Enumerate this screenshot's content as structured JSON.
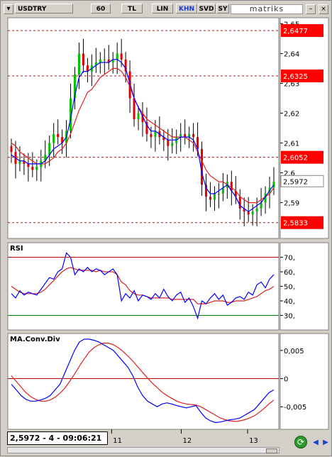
{
  "toolbar": {
    "symbol": "USDTRY",
    "buttons": [
      "60",
      "TL",
      "LIN",
      "KHN",
      "SVD",
      "SY"
    ],
    "active_button": "KHN",
    "logo": "matriks",
    "window_buttons": [
      "–",
      "□",
      "×"
    ]
  },
  "status": {
    "readout": "2,5972 - 4 - 09:06:21"
  },
  "colors": {
    "bull_candle": "#00c000",
    "bear_candle": "#e00000",
    "wick": "#000000",
    "ma_line": "#0000ff",
    "signal_line": "#e02020",
    "hline_level": "#e00000",
    "rsi_30_line": "#008000",
    "price_box": "#ff0000",
    "panel_bg": "#ffffff"
  },
  "chart_data": [
    {
      "type": "candlestick",
      "symbol": "USDTRY",
      "ylim": [
        2.578,
        2.652
      ],
      "yticks": [
        2.59,
        2.6,
        2.61,
        2.62,
        2.63,
        2.64,
        2.65
      ],
      "ytick_labels": [
        "2,59",
        "2,6",
        "2,61",
        "2,62",
        "2,63",
        "2,64",
        "2,65"
      ],
      "x_labels": [
        "11",
        "12",
        "13"
      ],
      "horizontal_levels": [
        {
          "value": 2.6477,
          "label": "2,6477"
        },
        {
          "value": 2.6325,
          "label": "2,6325"
        },
        {
          "value": 2.6052,
          "label": "2,6052"
        },
        {
          "value": 2.5833,
          "label": "2,5833"
        }
      ],
      "last_price": {
        "value": 2.5972,
        "label": "2,5972"
      },
      "series": [
        {
          "name": "close",
          "values": [
            2.607,
            2.603,
            2.604,
            2.603,
            2.602,
            2.601,
            2.602,
            2.604,
            2.606,
            2.61,
            2.613,
            2.612,
            2.61,
            2.614,
            2.625,
            2.633,
            2.64,
            2.636,
            2.634,
            2.636,
            2.637,
            2.638,
            2.638,
            2.637,
            2.638,
            2.64,
            2.638,
            2.634,
            2.625,
            2.618,
            2.62,
            2.617,
            2.613,
            2.612,
            2.614,
            2.612,
            2.611,
            2.609,
            2.61,
            2.612,
            2.613,
            2.612,
            2.613,
            2.612,
            2.608,
            2.596,
            2.592,
            2.591,
            2.593,
            2.593,
            2.595,
            2.597,
            2.594,
            2.592,
            2.588,
            2.587,
            2.586,
            2.587,
            2.588,
            2.59,
            2.593,
            2.595,
            2.597
          ]
        },
        {
          "name": "fast-average",
          "values": [
            2.606,
            2.605,
            2.604,
            2.604,
            2.603,
            2.603,
            2.603,
            2.603,
            2.604,
            2.606,
            2.608,
            2.609,
            2.61,
            2.612,
            2.618,
            2.626,
            2.632,
            2.634,
            2.634,
            2.635,
            2.636,
            2.637,
            2.637,
            2.637,
            2.638,
            2.638,
            2.637,
            2.635,
            2.63,
            2.625,
            2.622,
            2.619,
            2.616,
            2.614,
            2.614,
            2.613,
            2.612,
            2.611,
            2.611,
            2.611,
            2.612,
            2.612,
            2.612,
            2.611,
            2.608,
            2.6,
            2.595,
            2.593,
            2.593,
            2.594,
            2.595,
            2.596,
            2.594,
            2.592,
            2.589,
            2.588,
            2.587,
            2.588,
            2.589,
            2.59,
            2.592,
            2.594,
            2.596
          ]
        },
        {
          "name": "slow-average",
          "values": [
            2.61,
            2.609,
            2.607,
            2.606,
            2.605,
            2.604,
            2.603,
            2.603,
            2.603,
            2.604,
            2.605,
            2.607,
            2.608,
            2.61,
            2.613,
            2.617,
            2.621,
            2.624,
            2.627,
            2.628,
            2.63,
            2.632,
            2.633,
            2.634,
            2.635,
            2.635,
            2.634,
            2.632,
            2.629,
            2.625,
            2.622,
            2.62,
            2.618,
            2.617,
            2.616,
            2.615,
            2.614,
            2.613,
            2.612,
            2.612,
            2.612,
            2.612,
            2.611,
            2.61,
            2.607,
            2.604,
            2.601,
            2.599,
            2.598,
            2.597,
            2.597,
            2.596,
            2.595,
            2.594,
            2.592,
            2.591,
            2.59,
            2.59,
            2.59,
            2.591,
            2.592,
            2.593,
            2.595
          ]
        }
      ]
    },
    {
      "type": "line",
      "title": "RSI",
      "ylim": [
        20,
        80
      ],
      "yticks": [
        30,
        40,
        50,
        60,
        70
      ],
      "ytick_labels": [
        "30,",
        "40,",
        "50,",
        "60,",
        "70,"
      ],
      "reference_lines": [
        70,
        30
      ],
      "series": [
        {
          "name": "rsi",
          "values": [
            45,
            42,
            47,
            44,
            46,
            45,
            44,
            48,
            52,
            56,
            55,
            60,
            62,
            73,
            70,
            58,
            62,
            60,
            63,
            60,
            62,
            61,
            58,
            60,
            62,
            58,
            40,
            45,
            42,
            47,
            40,
            44,
            43,
            41,
            45,
            42,
            48,
            43,
            40,
            44,
            46,
            39,
            42,
            36,
            28,
            40,
            38,
            42,
            45,
            41,
            44,
            37,
            39,
            42,
            43,
            41,
            46,
            44,
            51,
            53,
            49,
            55,
            58
          ]
        },
        {
          "name": "signal",
          "values": [
            50,
            48,
            46,
            45,
            45,
            45,
            45,
            46,
            48,
            51,
            54,
            57,
            60,
            62,
            63,
            62,
            61,
            61,
            61,
            61,
            60,
            61,
            60,
            60,
            60,
            58,
            53,
            51,
            47,
            45,
            44,
            44,
            43,
            42,
            42,
            42,
            42,
            42,
            41,
            41,
            41,
            41,
            41,
            41,
            38,
            38,
            38,
            39,
            40,
            40,
            40,
            39,
            39,
            40,
            40,
            40,
            41,
            42,
            43,
            45,
            47,
            48,
            50
          ]
        }
      ]
    },
    {
      "type": "line",
      "title": "MA.Conv.Div",
      "ylim": [
        -0.009,
        0.008
      ],
      "yticks": [
        -0.005,
        0,
        0.005
      ],
      "ytick_labels": [
        "-0,005",
        "0",
        "0,005"
      ],
      "reference_lines": [
        0
      ],
      "series": [
        {
          "name": "macd",
          "values": [
            -0.001,
            -0.002,
            -0.003,
            -0.0037,
            -0.004,
            -0.004,
            -0.0038,
            -0.0035,
            -0.003,
            -0.002,
            -0.001,
            0.001,
            0.003,
            0.005,
            0.0065,
            0.007,
            0.007,
            0.0068,
            0.0065,
            0.006,
            0.0055,
            0.005,
            0.004,
            0.003,
            0.002,
            0.0005,
            -0.0015,
            -0.003,
            -0.004,
            -0.0045,
            -0.005,
            -0.0045,
            -0.0043,
            -0.0045,
            -0.0048,
            -0.005,
            -0.0052,
            -0.005,
            -0.0048,
            -0.006,
            -0.007,
            -0.0075,
            -0.0078,
            -0.0077,
            -0.0075,
            -0.0073,
            -0.0072,
            -0.007,
            -0.0065,
            -0.006,
            -0.0055,
            -0.0045,
            -0.0035,
            -0.0025,
            -0.002
          ]
        },
        {
          "name": "signal",
          "values": [
            0.0005,
            -0.0005,
            -0.0015,
            -0.0025,
            -0.0032,
            -0.0037,
            -0.004,
            -0.004,
            -0.0038,
            -0.0033,
            -0.0026,
            -0.0017,
            -0.0005,
            0.0008,
            0.0022,
            0.0035,
            0.0047,
            0.0055,
            0.006,
            0.0063,
            0.0063,
            0.006,
            0.0055,
            0.0048,
            0.004,
            0.0031,
            0.0021,
            0.0011,
            0.0001,
            -0.0008,
            -0.0016,
            -0.0024,
            -0.003,
            -0.0035,
            -0.004,
            -0.0043,
            -0.0045,
            -0.0046,
            -0.0047,
            -0.005,
            -0.0055,
            -0.006,
            -0.0065,
            -0.007,
            -0.0073,
            -0.0075,
            -0.0076,
            -0.0075,
            -0.0073,
            -0.007,
            -0.0066,
            -0.006,
            -0.0053,
            -0.0045,
            -0.0038
          ]
        }
      ]
    }
  ]
}
